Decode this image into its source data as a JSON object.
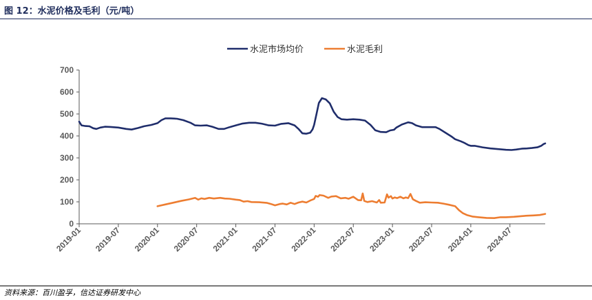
{
  "figure": {
    "title": "图 12：水泥价格及毛利（元/吨）",
    "source": "资料来源：百川盈孚，信达证券研发中心"
  },
  "chart_data": {
    "type": "line",
    "x_axis": {
      "tick_labels": [
        "2019-01",
        "2019-07",
        "2020-01",
        "2020-07",
        "2021-01",
        "2021-07",
        "2022-01",
        "2022-07",
        "2023-01",
        "2023-07",
        "2024-01",
        "2024-07"
      ],
      "tick_times": [
        2019.0,
        2019.5,
        2020.0,
        2020.5,
        2021.0,
        2021.5,
        2022.0,
        2022.5,
        2023.0,
        2023.5,
        2024.0,
        2024.5
      ],
      "range": [
        2019.0,
        2024.95
      ],
      "label_rotation": "-45deg"
    },
    "y_axis": {
      "ylim": [
        0,
        700
      ],
      "ticks": [
        0,
        100,
        200,
        300,
        400,
        500,
        600,
        700
      ]
    },
    "grid": false,
    "legend_position": "top-center",
    "series": [
      {
        "name": "水泥市场均价",
        "color": "#1f2d6b",
        "points": [
          [
            2019.0,
            465
          ],
          [
            2019.03,
            448
          ],
          [
            2019.08,
            445
          ],
          [
            2019.13,
            444
          ],
          [
            2019.18,
            435
          ],
          [
            2019.22,
            432
          ],
          [
            2019.27,
            438
          ],
          [
            2019.33,
            442
          ],
          [
            2019.4,
            441
          ],
          [
            2019.5,
            438
          ],
          [
            2019.6,
            432
          ],
          [
            2019.67,
            429
          ],
          [
            2019.75,
            436
          ],
          [
            2019.83,
            444
          ],
          [
            2019.92,
            450
          ],
          [
            2020.0,
            458
          ],
          [
            2020.05,
            472
          ],
          [
            2020.1,
            480
          ],
          [
            2020.17,
            480
          ],
          [
            2020.25,
            478
          ],
          [
            2020.33,
            472
          ],
          [
            2020.42,
            460
          ],
          [
            2020.48,
            448
          ],
          [
            2020.55,
            447
          ],
          [
            2020.63,
            448
          ],
          [
            2020.7,
            442
          ],
          [
            2020.78,
            432
          ],
          [
            2020.85,
            432
          ],
          [
            2020.92,
            440
          ],
          [
            2021.0,
            448
          ],
          [
            2021.08,
            456
          ],
          [
            2021.17,
            460
          ],
          [
            2021.25,
            460
          ],
          [
            2021.33,
            456
          ],
          [
            2021.42,
            448
          ],
          [
            2021.5,
            447
          ],
          [
            2021.58,
            455
          ],
          [
            2021.67,
            458
          ],
          [
            2021.75,
            448
          ],
          [
            2021.8,
            432
          ],
          [
            2021.85,
            412
          ],
          [
            2021.9,
            410
          ],
          [
            2021.95,
            415
          ],
          [
            2021.98,
            430
          ],
          [
            2022.0,
            450
          ],
          [
            2022.03,
            500
          ],
          [
            2022.06,
            550
          ],
          [
            2022.1,
            572
          ],
          [
            2022.15,
            566
          ],
          [
            2022.2,
            548
          ],
          [
            2022.25,
            510
          ],
          [
            2022.3,
            486
          ],
          [
            2022.35,
            476
          ],
          [
            2022.42,
            474
          ],
          [
            2022.5,
            476
          ],
          [
            2022.58,
            474
          ],
          [
            2022.65,
            470
          ],
          [
            2022.72,
            450
          ],
          [
            2022.78,
            426
          ],
          [
            2022.85,
            418
          ],
          [
            2022.92,
            417
          ],
          [
            2022.97,
            425
          ],
          [
            2023.02,
            428
          ],
          [
            2023.05,
            438
          ],
          [
            2023.12,
            452
          ],
          [
            2023.2,
            462
          ],
          [
            2023.25,
            458
          ],
          [
            2023.3,
            448
          ],
          [
            2023.38,
            440
          ],
          [
            2023.45,
            440
          ],
          [
            2023.5,
            440
          ],
          [
            2023.55,
            440
          ],
          [
            2023.6,
            432
          ],
          [
            2023.67,
            416
          ],
          [
            2023.75,
            398
          ],
          [
            2023.8,
            385
          ],
          [
            2023.87,
            376
          ],
          [
            2023.92,
            368
          ],
          [
            2023.97,
            358
          ],
          [
            2024.0,
            355
          ],
          [
            2024.05,
            355
          ],
          [
            2024.15,
            348
          ],
          [
            2024.25,
            343
          ],
          [
            2024.35,
            340
          ],
          [
            2024.45,
            337
          ],
          [
            2024.52,
            336
          ],
          [
            2024.58,
            338
          ],
          [
            2024.65,
            342
          ],
          [
            2024.72,
            343
          ],
          [
            2024.78,
            345
          ],
          [
            2024.85,
            348
          ],
          [
            2024.9,
            355
          ],
          [
            2024.93,
            363
          ],
          [
            2024.95,
            366
          ]
        ]
      },
      {
        "name": "水泥毛利",
        "color": "#ed7d31",
        "points": [
          [
            2020.0,
            80
          ],
          [
            2020.1,
            88
          ],
          [
            2020.2,
            96
          ],
          [
            2020.3,
            104
          ],
          [
            2020.4,
            111
          ],
          [
            2020.48,
            118
          ],
          [
            2020.52,
            110
          ],
          [
            2020.56,
            116
          ],
          [
            2020.6,
            113
          ],
          [
            2020.66,
            118
          ],
          [
            2020.72,
            115
          ],
          [
            2020.8,
            118
          ],
          [
            2020.86,
            115
          ],
          [
            2020.92,
            114
          ],
          [
            2021.0,
            110
          ],
          [
            2021.05,
            108
          ],
          [
            2021.1,
            101
          ],
          [
            2021.15,
            103
          ],
          [
            2021.2,
            99
          ],
          [
            2021.3,
            98
          ],
          [
            2021.4,
            95
          ],
          [
            2021.45,
            90
          ],
          [
            2021.5,
            84
          ],
          [
            2021.56,
            90
          ],
          [
            2021.6,
            92
          ],
          [
            2021.65,
            88
          ],
          [
            2021.7,
            96
          ],
          [
            2021.75,
            90
          ],
          [
            2021.8,
            97
          ],
          [
            2021.85,
            101
          ],
          [
            2021.9,
            97
          ],
          [
            2021.95,
            106
          ],
          [
            2022.0,
            113
          ],
          [
            2022.02,
            127
          ],
          [
            2022.05,
            123
          ],
          [
            2022.07,
            131
          ],
          [
            2022.12,
            128
          ],
          [
            2022.18,
            118
          ],
          [
            2022.22,
            124
          ],
          [
            2022.28,
            126
          ],
          [
            2022.34,
            116
          ],
          [
            2022.4,
            118
          ],
          [
            2022.44,
            114
          ],
          [
            2022.5,
            123
          ],
          [
            2022.56,
            108
          ],
          [
            2022.6,
            107
          ],
          [
            2022.62,
            138
          ],
          [
            2022.64,
            104
          ],
          [
            2022.68,
            99
          ],
          [
            2022.74,
            103
          ],
          [
            2022.8,
            97
          ],
          [
            2022.83,
            108
          ],
          [
            2022.85,
            96
          ],
          [
            2022.9,
            97
          ],
          [
            2022.93,
            134
          ],
          [
            2022.95,
            119
          ],
          [
            2022.98,
            126
          ],
          [
            2023.0,
            115
          ],
          [
            2023.03,
            120
          ],
          [
            2023.06,
            117
          ],
          [
            2023.1,
            123
          ],
          [
            2023.14,
            116
          ],
          [
            2023.17,
            120
          ],
          [
            2023.2,
            117
          ],
          [
            2023.23,
            136
          ],
          [
            2023.26,
            112
          ],
          [
            2023.3,
            104
          ],
          [
            2023.35,
            96
          ],
          [
            2023.42,
            98
          ],
          [
            2023.5,
            97
          ],
          [
            2023.58,
            96
          ],
          [
            2023.65,
            92
          ],
          [
            2023.72,
            87
          ],
          [
            2023.8,
            80
          ],
          [
            2023.85,
            62
          ],
          [
            2023.9,
            48
          ],
          [
            2023.95,
            40
          ],
          [
            2024.02,
            33
          ],
          [
            2024.1,
            30
          ],
          [
            2024.2,
            27
          ],
          [
            2024.3,
            26
          ],
          [
            2024.38,
            30
          ],
          [
            2024.45,
            30
          ],
          [
            2024.55,
            32
          ],
          [
            2024.65,
            35
          ],
          [
            2024.72,
            37
          ],
          [
            2024.8,
            38
          ],
          [
            2024.88,
            40
          ],
          [
            2024.95,
            45
          ]
        ]
      }
    ]
  }
}
